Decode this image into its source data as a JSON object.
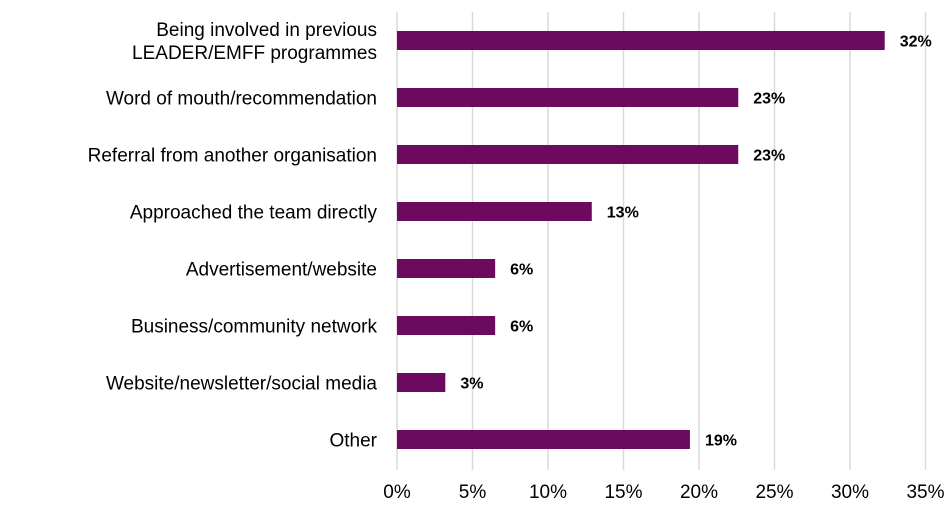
{
  "chart_data": {
    "type": "bar",
    "orientation": "horizontal",
    "title": "",
    "xlabel": "",
    "ylabel": "",
    "categories": [
      [
        "Being involved in previous",
        "LEADER/EMFF programmes"
      ],
      [
        "Word of mouth/recommendation"
      ],
      [
        "Referral from another organisation"
      ],
      [
        "Approached the team directly"
      ],
      [
        "Advertisement/website"
      ],
      [
        "Business/community network"
      ],
      [
        "Website/newsletter/social media"
      ],
      [
        "Other"
      ]
    ],
    "values": [
      32.3,
      22.6,
      22.6,
      12.9,
      6.5,
      6.5,
      3.2,
      19.4
    ],
    "data_labels": [
      "32%",
      "23%",
      "23%",
      "13%",
      "6%",
      "6%",
      "3%",
      "19%"
    ],
    "xlim": [
      0,
      35
    ],
    "x_ticks": [
      0,
      5,
      10,
      15,
      20,
      25,
      30,
      35
    ],
    "x_tick_labels": [
      "0%",
      "5%",
      "10%",
      "15%",
      "20%",
      "25%",
      "30%",
      "35%"
    ],
    "bar_color": "#6b0a5e",
    "grid": true,
    "legend": "none"
  }
}
